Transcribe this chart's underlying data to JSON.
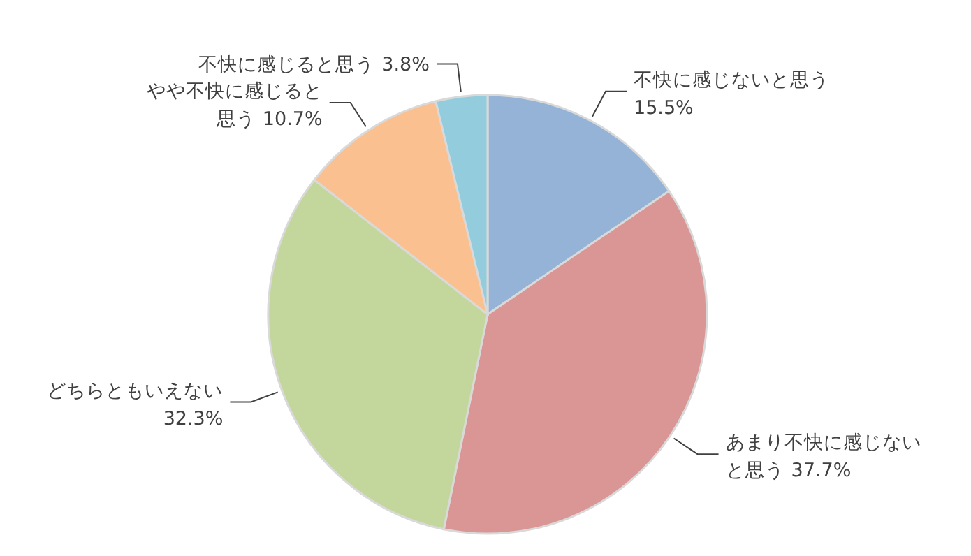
{
  "chart_data": {
    "type": "pie",
    "categories": [
      "不快に感じないと思う",
      "あまり不快に感じないと思う",
      "どちらともいえない",
      "やや不快に感じると思う",
      "不快に感じると思う"
    ],
    "values": [
      15.5,
      37.7,
      32.3,
      10.7,
      3.8
    ],
    "colors": [
      "#95b3d7",
      "#d99694",
      "#c3d69b",
      "#fac090",
      "#93cddd"
    ],
    "value_labels": [
      "15.5%",
      "37.7%",
      "32.3%",
      "10.7%",
      "3.8%"
    ]
  }
}
